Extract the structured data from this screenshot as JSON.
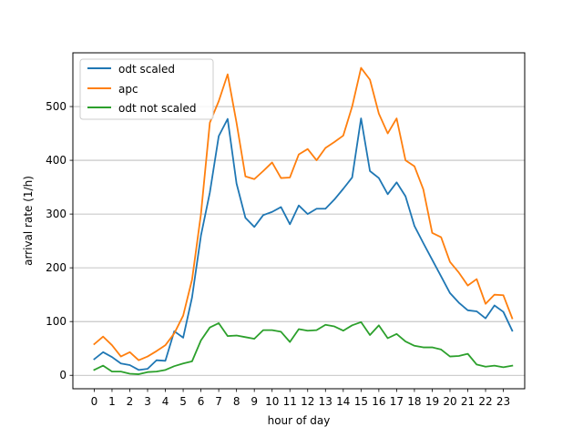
{
  "chart_data": {
    "type": "line",
    "xlabel": "hour of day",
    "ylabel": "arrival rate (1/h)",
    "xlim": [
      -1.2,
      24.2
    ],
    "ylim": [
      -25,
      600
    ],
    "x_ticks": [
      0,
      1,
      2,
      3,
      4,
      5,
      6,
      7,
      8,
      9,
      10,
      11,
      12,
      13,
      14,
      15,
      16,
      17,
      18,
      19,
      20,
      21,
      22,
      23
    ],
    "y_ticks": [
      0,
      100,
      200,
      300,
      400,
      500
    ],
    "grid": "horizontal",
    "legend": "top-left",
    "x": [
      0,
      0.5,
      1,
      1.5,
      2,
      2.5,
      3,
      3.5,
      4,
      4.5,
      5,
      5.5,
      6,
      6.5,
      7,
      7.5,
      8,
      8.5,
      9,
      9.5,
      10,
      10.5,
      11,
      11.5,
      12,
      12.5,
      13,
      13.5,
      14,
      14.5,
      15,
      15.5,
      16,
      16.5,
      17,
      17.5,
      18,
      18.5,
      19,
      19.5,
      20,
      20.5,
      21,
      21.5,
      22,
      22.5,
      23,
      23.5
    ],
    "series": [
      {
        "name": "odt scaled",
        "color": "#1f77b4",
        "values": [
          30,
          43,
          34,
          22,
          19,
          10,
          12,
          28,
          27,
          82,
          70,
          145,
          260,
          340,
          445,
          477,
          357,
          293,
          276,
          298,
          304,
          313,
          281,
          316,
          300,
          310,
          310,
          327,
          347,
          368,
          478,
          380,
          367,
          337,
          359,
          333,
          278,
          246,
          215,
          184,
          153,
          135,
          121,
          119,
          106,
          130,
          118,
          83
        ]
      },
      {
        "name": "apc",
        "color": "#ff7f0e",
        "values": [
          58,
          72,
          56,
          35,
          43,
          28,
          35,
          45,
          56,
          78,
          111,
          178,
          300,
          470,
          510,
          560,
          470,
          370,
          365,
          380,
          396,
          367,
          368,
          411,
          421,
          400,
          423,
          434,
          446,
          500,
          572,
          550,
          487,
          450,
          478,
          400,
          389,
          346,
          265,
          257,
          211,
          191,
          167,
          179,
          133,
          150,
          149,
          106
        ]
      },
      {
        "name": "odt not scaled",
        "color": "#2ca02c",
        "values": [
          10,
          18,
          7,
          7,
          3,
          2,
          6,
          7,
          10,
          17,
          22,
          26,
          65,
          89,
          97,
          73,
          74,
          71,
          68,
          84,
          84,
          81,
          62,
          86,
          83,
          84,
          94,
          91,
          83,
          93,
          99,
          75,
          93,
          69,
          77,
          63,
          55,
          52,
          52,
          48,
          35,
          36,
          40,
          20,
          16,
          18,
          15,
          18
        ]
      }
    ]
  }
}
